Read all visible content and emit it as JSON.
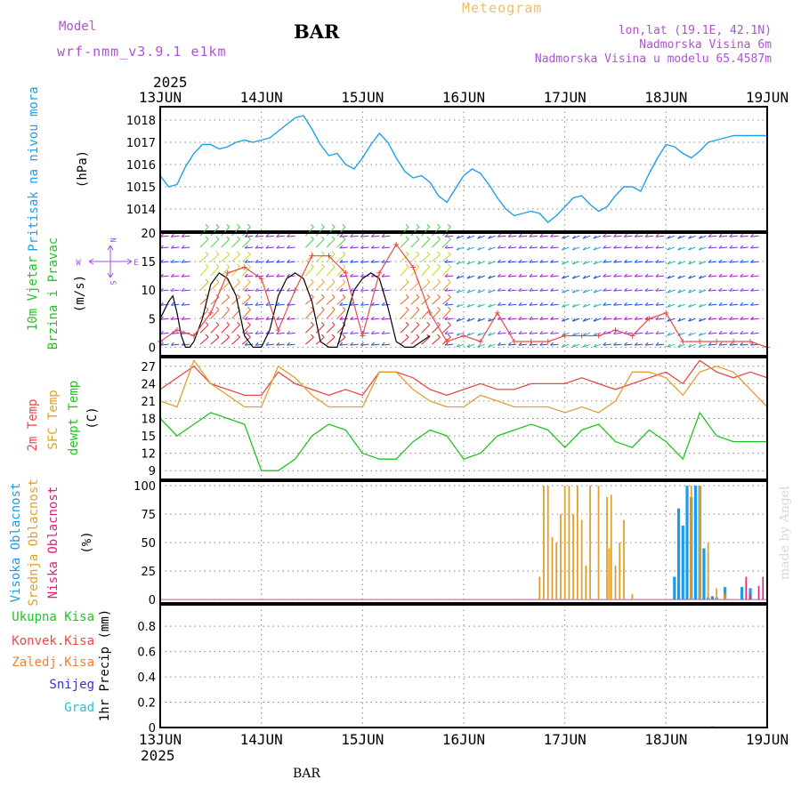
{
  "header": {
    "model_label": "Model",
    "model_name": "wrf-nmm_v3.9.1 e1km",
    "station": "BAR",
    "title": "Meteogram",
    "location": "lon,lat (19.1E, 42.1N)",
    "altitude": "Nadmorska Visina 6m",
    "model_altitude": "Nadmorska Visina u modelu 65.4587m",
    "year_top": "2025",
    "year_bottom": "2025",
    "footer_station": "BAR",
    "credit": "made by Angel"
  },
  "days": [
    "13JUN",
    "14JUN",
    "15JUN",
    "16JUN",
    "17JUN",
    "18JUN",
    "19JUN"
  ],
  "colors": {
    "pressure": "#1ea0e6",
    "temp2m": "#e84b4b",
    "sfc": "#e0a030",
    "dewpt": "#22c422",
    "high_cloud": "#1e9be8",
    "mid_cloud": "#e0a030",
    "low_cloud": "#e0207a",
    "snow": "#3030e0",
    "grad": "#20c8c8",
    "wind_label": "#22c422",
    "compass": "#a050e0",
    "header_purple": "#b050d8",
    "header_gold": "#e8c070",
    "grid": "#888888"
  },
  "panels": {
    "pressure": {
      "labels": [
        "Pritisak na nivou mora"
      ],
      "unit": "(hPa)",
      "yticks": [
        1014,
        1015,
        1016,
        1017,
        1018
      ],
      "ylim": [
        1013.0,
        1018.6
      ]
    },
    "wind": {
      "labels": [
        "10m Vjetar",
        "Brzina i Pravac"
      ],
      "unit": "(m/s)",
      "yticks": [
        0,
        5,
        10,
        15,
        20
      ],
      "ylim": [
        -1.5,
        20
      ],
      "compass": {
        "n": "N",
        "s": "S",
        "e": "E",
        "w": "W"
      }
    },
    "temp": {
      "labels": [
        "2m Temp",
        "SFC Temp",
        "dewpt Temp"
      ],
      "unit": "(C)",
      "yticks": [
        9,
        12,
        15,
        18,
        21,
        24,
        27
      ],
      "ylim": [
        7.5,
        28.5
      ]
    },
    "cloud": {
      "labels": [
        "Visoka Oblacnost",
        "Srednja Oblacnost",
        "Niska Oblacnost"
      ],
      "unit": "(%)",
      "yticks": [
        0,
        25,
        50,
        75,
        100
      ],
      "ylim": [
        -3,
        104
      ]
    },
    "precip": {
      "legend": [
        "Ukupna Kisa",
        "Konvek.Kisa",
        "Zaledj.Kisa",
        "Snijeg",
        "Grad"
      ],
      "unit": "1hr Precip (mm)",
      "yticks": [
        "0",
        "0.2",
        "0.4",
        "0.6",
        "0.8"
      ],
      "ylim": [
        0,
        0.97
      ]
    }
  },
  "chart_data": [
    {
      "type": "line",
      "title": "",
      "ylabel": "Pritisak na nivou mora (hPa)",
      "x_unit": "hours from 13JUN 00",
      "series": [
        {
          "name": "Pritisak na nivou mora",
          "x": [
            0,
            2,
            4,
            6,
            8,
            10,
            12,
            14,
            16,
            18,
            20,
            22,
            24,
            26,
            28,
            30,
            32,
            34,
            36,
            38,
            40,
            42,
            44,
            46,
            48,
            50,
            52,
            54,
            56,
            58,
            60,
            62,
            64,
            66,
            68,
            70,
            72,
            74,
            76,
            78,
            80,
            82,
            84,
            86,
            88,
            90,
            92,
            94,
            96,
            98,
            100,
            102,
            104,
            106,
            108,
            110,
            112,
            114,
            116,
            118,
            120,
            122,
            124,
            126,
            128,
            130,
            132,
            134,
            136,
            138,
            140,
            142,
            144
          ],
          "values": [
            1015.5,
            1015.0,
            1015.1,
            1015.9,
            1016.5,
            1016.9,
            1016.9,
            1016.7,
            1016.8,
            1017.0,
            1017.1,
            1017.0,
            1017.1,
            1017.2,
            1017.5,
            1017.8,
            1018.1,
            1018.2,
            1017.6,
            1016.9,
            1016.4,
            1016.5,
            1016.0,
            1015.8,
            1016.3,
            1016.9,
            1017.4,
            1017.0,
            1016.3,
            1015.7,
            1015.4,
            1015.5,
            1015.2,
            1014.6,
            1014.3,
            1014.9,
            1015.5,
            1015.8,
            1015.6,
            1015.1,
            1014.5,
            1014.0,
            1013.7,
            1013.8,
            1013.9,
            1013.8,
            1013.4,
            1013.7,
            1014.1,
            1014.5,
            1014.6,
            1014.2,
            1013.9,
            1014.1,
            1014.6,
            1015.0,
            1015.0,
            1014.8,
            1015.6,
            1016.3,
            1016.9,
            1016.8,
            1016.5,
            1016.3,
            1016.6,
            1017.0,
            1017.1,
            1017.2,
            1017.3,
            1017.3,
            1017.3,
            1017.3,
            1017.3
          ]
        }
      ],
      "ylim": [
        1013.0,
        1018.6
      ]
    },
    {
      "type": "line",
      "title": "",
      "ylabel": "10m Vjetar Brzina i Pravac (m/s)",
      "x_unit": "hours from 13JUN 00",
      "series": [
        {
          "name": "black",
          "x": [
            0,
            2,
            3,
            4,
            5,
            6,
            7,
            8,
            10,
            12,
            14,
            16,
            18,
            20,
            22,
            24,
            26,
            28,
            30,
            32,
            34,
            36,
            38,
            40,
            42,
            44,
            46,
            48,
            50,
            52,
            54,
            56,
            58,
            60,
            62,
            64
          ],
          "values": [
            5,
            8,
            9,
            6,
            2,
            0,
            0,
            1,
            5,
            11,
            13,
            12,
            9,
            2,
            0,
            0,
            3,
            9,
            12,
            13,
            12,
            8,
            1,
            0,
            0,
            5,
            10,
            12,
            13,
            12,
            7,
            1,
            0,
            0,
            1,
            2
          ]
        },
        {
          "name": "red",
          "x": [
            0,
            4,
            8,
            12,
            16,
            20,
            24,
            28,
            32,
            36,
            40,
            44,
            48,
            52,
            56,
            60,
            64,
            68,
            72,
            76,
            80,
            84,
            88,
            92,
            96,
            100,
            104,
            108,
            112,
            116,
            120,
            124,
            128,
            132,
            136,
            140,
            144
          ],
          "values": [
            1,
            3,
            2,
            6,
            13,
            14,
            12,
            3,
            10,
            16,
            16,
            13,
            2,
            13,
            18,
            14,
            6,
            1,
            2,
            1,
            6,
            1,
            1,
            1,
            2,
            2,
            2,
            3,
            2,
            5,
            6,
            1,
            1,
            1,
            1,
            1,
            0
          ]
        }
      ],
      "ylim": [
        -1.5,
        20
      ]
    },
    {
      "type": "line",
      "title": "",
      "ylabel": "Temp (C)",
      "x_unit": "hours from 13JUN 00",
      "series": [
        {
          "name": "2m Temp",
          "x": [
            0,
            4,
            8,
            12,
            16,
            20,
            24,
            28,
            32,
            36,
            40,
            44,
            48,
            52,
            56,
            60,
            64,
            68,
            72,
            76,
            80,
            84,
            88,
            92,
            96,
            100,
            104,
            108,
            112,
            116,
            120,
            124,
            128,
            132,
            136,
            140,
            144
          ],
          "values": [
            23,
            25,
            27,
            24,
            23,
            22,
            22,
            26,
            24,
            23,
            22,
            23,
            22,
            26,
            26,
            25,
            23,
            22,
            23,
            24,
            23,
            23,
            24,
            24,
            24,
            25,
            24,
            23,
            24,
            25,
            26,
            24,
            28,
            26,
            25,
            26,
            25
          ]
        },
        {
          "name": "SFC Temp",
          "x": [
            0,
            4,
            8,
            12,
            16,
            20,
            24,
            28,
            32,
            36,
            40,
            44,
            48,
            52,
            56,
            60,
            64,
            68,
            72,
            76,
            80,
            84,
            88,
            92,
            96,
            100,
            104,
            108,
            112,
            116,
            120,
            124,
            128,
            132,
            136,
            140,
            144
          ],
          "values": [
            21,
            20,
            28,
            24,
            22,
            20,
            20,
            27,
            25,
            22,
            20,
            20,
            20,
            26,
            26,
            23,
            21,
            20,
            20,
            22,
            21,
            20,
            20,
            20,
            19,
            20,
            19,
            21,
            26,
            26,
            25,
            22,
            26,
            27,
            26,
            23,
            20
          ]
        },
        {
          "name": "dewpt Temp",
          "x": [
            0,
            4,
            8,
            12,
            16,
            20,
            24,
            28,
            32,
            36,
            40,
            44,
            48,
            52,
            56,
            60,
            64,
            68,
            72,
            76,
            80,
            84,
            88,
            92,
            96,
            100,
            104,
            108,
            112,
            116,
            120,
            124,
            128,
            132,
            136,
            140,
            144
          ],
          "values": [
            18,
            15,
            17,
            19,
            18,
            17,
            9,
            9,
            11,
            15,
            17,
            16,
            12,
            11,
            11,
            14,
            16,
            15,
            11,
            12,
            15,
            16,
            17,
            16,
            13,
            16,
            17,
            14,
            13,
            16,
            14,
            11,
            19,
            15,
            14,
            14,
            14
          ]
        }
      ],
      "ylim": [
        7.5,
        28.5
      ]
    },
    {
      "type": "bar",
      "title": "",
      "ylabel": "Oblacnost (%)",
      "x_unit": "hours from 13JUN 00",
      "series": [
        {
          "name": "Visoka Oblacnost",
          "x": [
            122,
            123,
            124,
            125,
            126,
            127,
            128,
            129,
            130,
            131,
            132,
            134,
            138,
            140
          ],
          "values": [
            20,
            80,
            65,
            100,
            90,
            100,
            100,
            45,
            2,
            3,
            2,
            11,
            11,
            10
          ]
        },
        {
          "name": "Srednja Oblacnost",
          "x": [
            90,
            91,
            92,
            93,
            94,
            95,
            96,
            97,
            98,
            99,
            100,
            101,
            102,
            104,
            106,
            106.5,
            107,
            108,
            109,
            110,
            112,
            126,
            128,
            130,
            132,
            134,
            140
          ],
          "values": [
            20,
            100,
            100,
            55,
            50,
            75,
            100,
            100,
            75,
            100,
            70,
            30,
            100,
            100,
            90,
            45,
            92,
            30,
            50,
            70,
            5,
            100,
            100,
            50,
            10,
            5,
            5
          ]
        },
        {
          "name": "Niska Oblacnost",
          "x": [
            139,
            140,
            142,
            143
          ],
          "values": [
            20,
            5,
            12,
            20
          ]
        }
      ],
      "ylim": [
        -3,
        104
      ]
    },
    {
      "type": "bar",
      "title": "",
      "ylabel": "1hr Precip (mm)",
      "x_unit": "hours from 13JUN 00",
      "series": [
        {
          "name": "Ukupna Kisa",
          "x": [
            131
          ],
          "values": [
            0.01
          ]
        }
      ],
      "ylim": [
        0,
        0.97
      ]
    }
  ]
}
